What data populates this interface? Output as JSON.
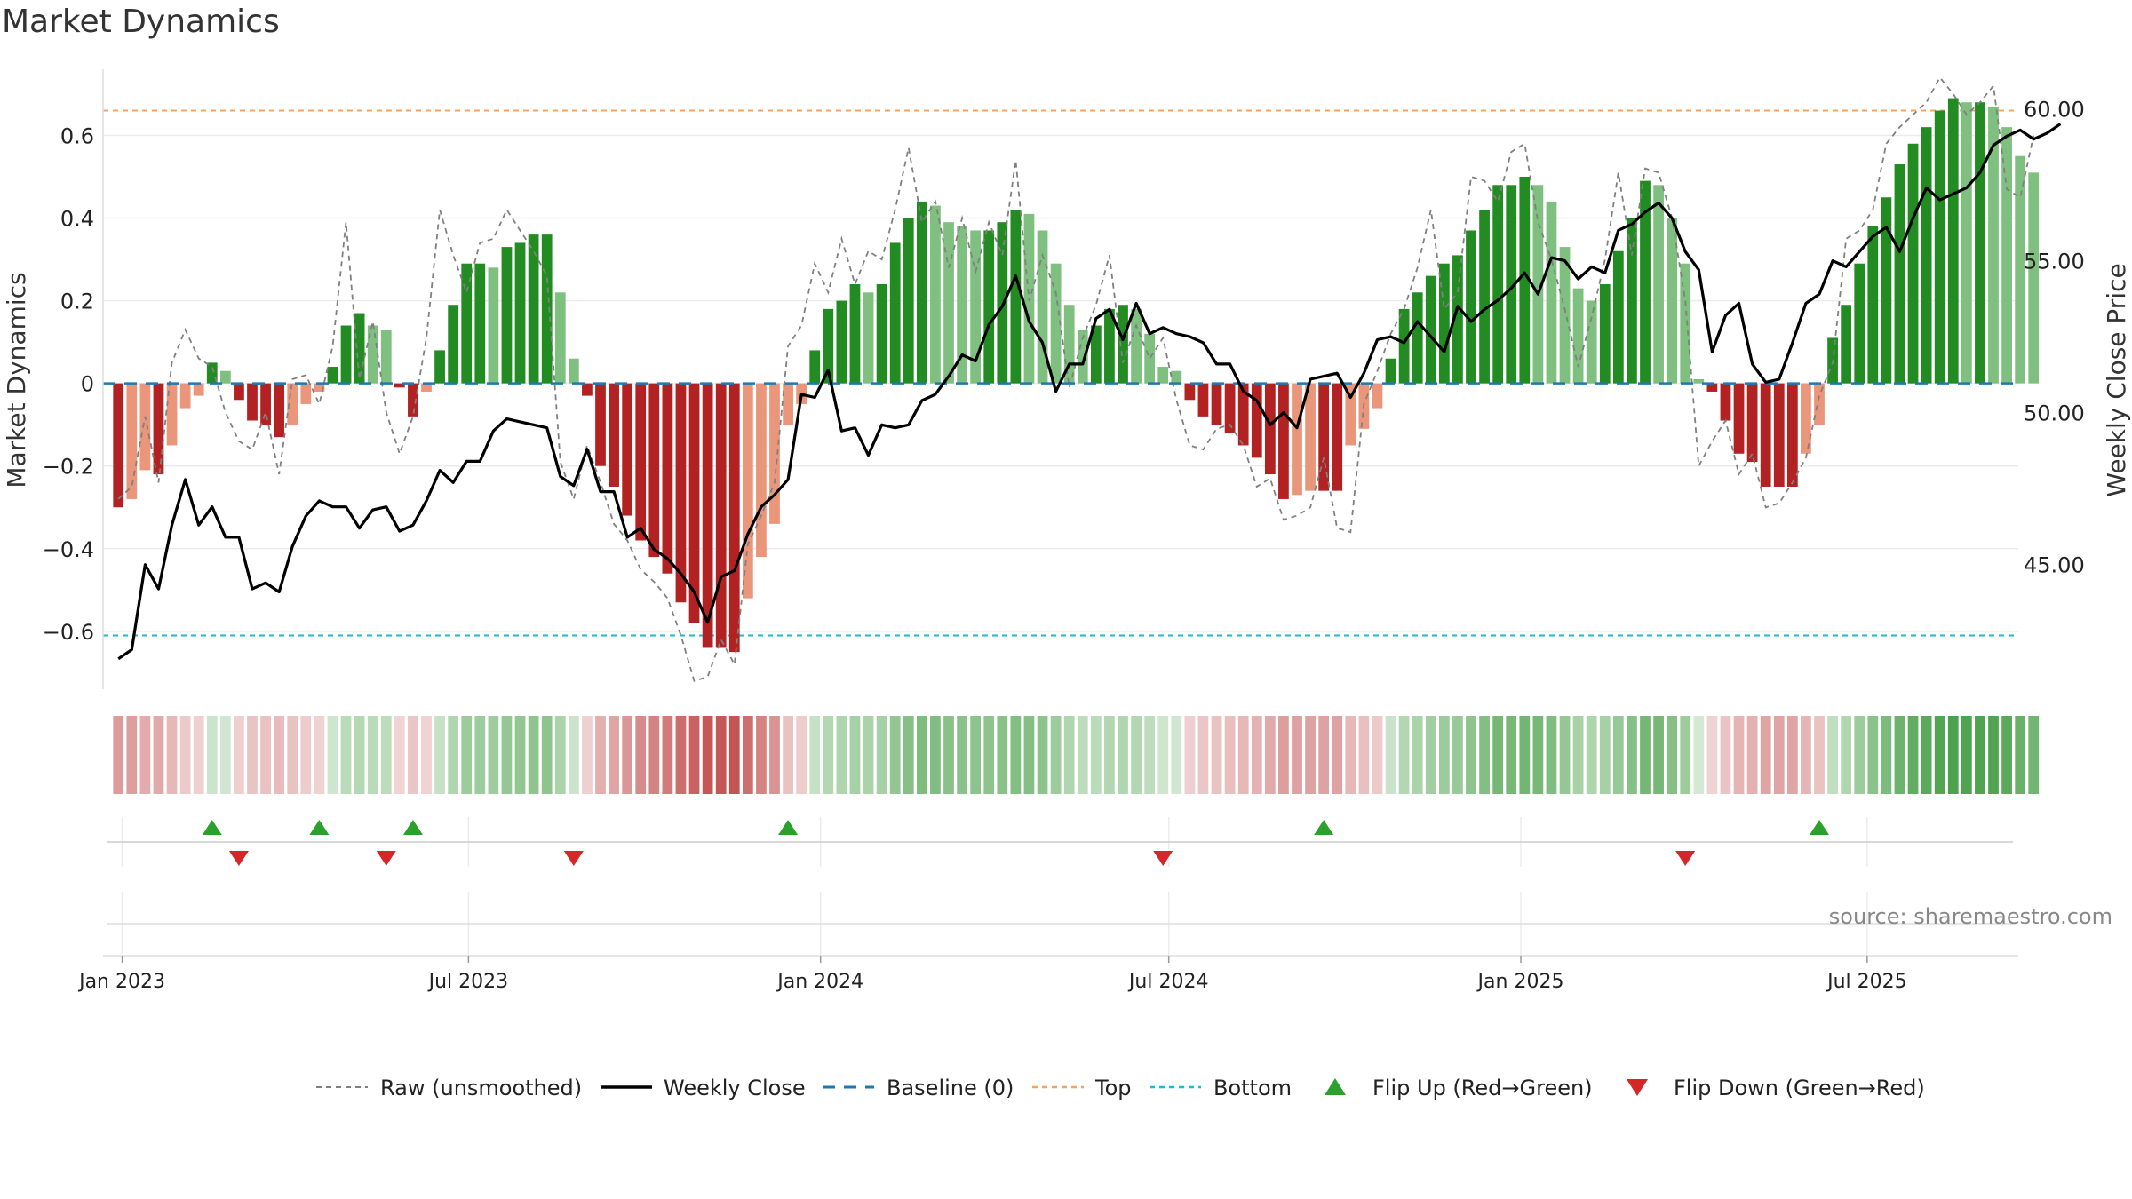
{
  "title": "Market Dynamics",
  "source": "source: sharemaestro.com",
  "colors": {
    "strong_green": "#228b22",
    "light_green": "#7fbf7f",
    "strong_red": "#b22222",
    "light_red": "#e9967a",
    "raw_line": "#808080",
    "close_line": "#000000",
    "baseline": "#1f77b4",
    "top": "#f4a460",
    "bottom": "#17becf",
    "flip_up": "#2ca02c",
    "flip_down": "#d62728"
  },
  "chart_data": {
    "type": "bar",
    "title": "Market Dynamics",
    "ylabel": "Market Dynamics",
    "y2label": "Weekly Close Price",
    "ylim": [
      -0.74,
      0.76
    ],
    "y2lim": [
      40.9,
      61.3
    ],
    "yticks": [
      -0.6,
      -0.4,
      -0.2,
      0,
      0.2,
      0.4,
      0.6
    ],
    "ytick_labels": [
      "−0.6",
      "−0.4",
      "−0.2",
      "0",
      "0.2",
      "0.4",
      "0.6"
    ],
    "y2ticks": [
      45,
      50,
      55,
      60
    ],
    "y2tick_labels": [
      "45.00",
      "50.00",
      "55.00",
      "60.00"
    ],
    "x_start": "2022-12-30",
    "x_step_days": 7,
    "xlim": [
      "2022-12-22",
      "2025-09-18"
    ],
    "xticks": [
      "2023-01-01",
      "2023-07-01",
      "2024-01-01",
      "2024-07-01",
      "2025-01-01",
      "2025-07-01"
    ],
    "xtick_labels": [
      "Jan 2023",
      "Jul 2023",
      "Jan 2024",
      "Jul 2024",
      "Jan 2025",
      "Jul 2025"
    ],
    "top_line": 0.66,
    "bottom_line": -0.61,
    "baseline": 0,
    "grid": true,
    "legend_position": "bottom",
    "legend": [
      "Raw (unsmoothed)",
      "Weekly Close",
      "Baseline (0)",
      "Top",
      "Bottom",
      "Flip Up (Red→Green)",
      "Flip Down (Green→Red)"
    ],
    "series": [
      {
        "name": "Market Dynamics",
        "values": [
          -0.3,
          -0.28,
          -0.21,
          -0.22,
          -0.15,
          -0.06,
          -0.03,
          0.05,
          0.03,
          -0.04,
          -0.09,
          -0.1,
          -0.13,
          -0.1,
          -0.05,
          -0.02,
          0.04,
          0.14,
          0.17,
          0.14,
          0.13,
          -0.01,
          -0.08,
          -0.02,
          0.08,
          0.19,
          0.29,
          0.29,
          0.28,
          0.33,
          0.34,
          0.36,
          0.36,
          0.22,
          0.06,
          -0.03,
          -0.2,
          -0.25,
          -0.32,
          -0.38,
          -0.42,
          -0.46,
          -0.53,
          -0.58,
          -0.64,
          -0.64,
          -0.65,
          -0.52,
          -0.42,
          -0.34,
          -0.1,
          -0.05,
          0.08,
          0.18,
          0.2,
          0.24,
          0.22,
          0.24,
          0.34,
          0.4,
          0.44,
          0.43,
          0.39,
          0.38,
          0.37,
          0.37,
          0.39,
          0.42,
          0.41,
          0.37,
          0.29,
          0.19,
          0.13,
          0.14,
          0.18,
          0.19,
          0.18,
          0.12,
          0.04,
          0.03,
          -0.04,
          -0.08,
          -0.1,
          -0.12,
          -0.15,
          -0.18,
          -0.22,
          -0.28,
          -0.27,
          -0.26,
          -0.26,
          -0.26,
          -0.15,
          -0.11,
          -0.06,
          0.06,
          0.18,
          0.22,
          0.26,
          0.29,
          0.31,
          0.37,
          0.42,
          0.48,
          0.48,
          0.5,
          0.48,
          0.44,
          0.33,
          0.23,
          0.2,
          0.24,
          0.32,
          0.4,
          0.49,
          0.48,
          0.4,
          0.29,
          0.01,
          -0.02,
          -0.09,
          -0.17,
          -0.19,
          -0.25,
          -0.25,
          -0.25,
          -0.17,
          -0.1,
          0.11,
          0.19,
          0.29,
          0.38,
          0.45,
          0.53,
          0.58,
          0.62,
          0.66,
          0.69,
          0.68,
          0.68,
          0.67,
          0.62,
          0.55,
          0.51
        ]
      },
      {
        "name": "Raw (unsmoothed)",
        "values": [
          -0.28,
          -0.25,
          -0.08,
          -0.24,
          0.05,
          0.13,
          0.06,
          0.04,
          -0.07,
          -0.14,
          -0.16,
          -0.07,
          -0.22,
          0.01,
          0.02,
          -0.05,
          0.09,
          0.39,
          0.01,
          0.15,
          -0.07,
          -0.17,
          -0.08,
          0.11,
          0.42,
          0.31,
          0.22,
          0.34,
          0.35,
          0.42,
          0.37,
          0.32,
          0.26,
          -0.19,
          -0.28,
          -0.15,
          -0.24,
          -0.34,
          -0.38,
          -0.45,
          -0.48,
          -0.52,
          -0.61,
          -0.72,
          -0.71,
          -0.62,
          -0.68,
          -0.39,
          -0.32,
          -0.24,
          0.09,
          0.14,
          0.29,
          0.22,
          0.35,
          0.24,
          0.32,
          0.3,
          0.42,
          0.57,
          0.39,
          0.44,
          0.28,
          0.4,
          0.27,
          0.39,
          0.31,
          0.54,
          0.2,
          0.31,
          0.22,
          -0.01,
          0.11,
          0.19,
          0.31,
          0.05,
          0.14,
          0.06,
          0.11,
          -0.04,
          -0.15,
          -0.16,
          -0.11,
          -0.1,
          -0.15,
          -0.25,
          -0.23,
          -0.33,
          -0.32,
          -0.3,
          -0.18,
          -0.35,
          -0.36,
          -0.05,
          0.03,
          0.12,
          0.18,
          0.28,
          0.42,
          0.18,
          0.22,
          0.5,
          0.49,
          0.44,
          0.56,
          0.58,
          0.39,
          0.3,
          0.18,
          0.04,
          0.16,
          0.3,
          0.51,
          0.31,
          0.52,
          0.51,
          0.4,
          0.2,
          -0.2,
          -0.14,
          -0.09,
          -0.22,
          -0.17,
          -0.3,
          -0.29,
          -0.24,
          -0.18,
          -0.03,
          0.05,
          0.35,
          0.37,
          0.42,
          0.58,
          0.62,
          0.65,
          0.68,
          0.74,
          0.7,
          0.65,
          0.68,
          0.72,
          0.47,
          0.45,
          0.6
        ]
      },
      {
        "name": "Weekly Close",
        "values": [
          41.9,
          42.2,
          45.0,
          44.2,
          46.3,
          47.8,
          46.3,
          46.9,
          45.9,
          45.9,
          44.2,
          44.4,
          44.1,
          45.6,
          46.6,
          47.1,
          46.9,
          46.9,
          46.2,
          46.8,
          46.9,
          46.1,
          46.3,
          47.1,
          48.1,
          47.7,
          48.4,
          48.4,
          49.4,
          49.8,
          49.7,
          49.6,
          49.5,
          47.9,
          47.6,
          48.8,
          47.4,
          47.4,
          45.9,
          46.2,
          45.5,
          45.2,
          44.7,
          44.1,
          43.1,
          44.6,
          44.8,
          46.0,
          46.9,
          47.3,
          47.8,
          50.6,
          50.5,
          51.4,
          49.4,
          49.5,
          48.6,
          49.6,
          49.5,
          49.6,
          50.4,
          50.6,
          51.2,
          51.9,
          51.7,
          52.9,
          53.5,
          54.5,
          53.0,
          52.3,
          50.7,
          51.6,
          51.6,
          53.1,
          53.4,
          52.4,
          53.6,
          52.6,
          52.8,
          52.6,
          52.5,
          52.3,
          51.6,
          51.6,
          50.7,
          50.4,
          49.6,
          50.0,
          49.5,
          51.1,
          51.2,
          51.3,
          50.5,
          51.3,
          52.4,
          52.5,
          52.3,
          53.0,
          52.5,
          52.0,
          53.5,
          53.0,
          53.4,
          53.7,
          54.1,
          54.6,
          53.9,
          55.1,
          55.0,
          54.4,
          54.8,
          54.6,
          56.0,
          56.2,
          56.6,
          56.9,
          56.4,
          55.3,
          54.7,
          52.0,
          53.2,
          53.6,
          51.6,
          51.0,
          51.1,
          52.3,
          53.6,
          53.9,
          55.0,
          54.8,
          55.3,
          55.8,
          56.1,
          55.3,
          56.4,
          57.4,
          57.0,
          57.2,
          57.4,
          57.9,
          58.8,
          59.1,
          59.3,
          59.0,
          59.2,
          59.5
        ]
      }
    ],
    "flips": {
      "up": [
        "2023-02-17",
        "2023-04-14",
        "2023-06-02",
        "2023-12-15",
        "2024-09-20",
        "2025-06-06"
      ],
      "down": [
        "2023-03-03",
        "2023-05-19",
        "2023-08-25",
        "2024-06-28",
        "2025-03-28"
      ]
    }
  }
}
